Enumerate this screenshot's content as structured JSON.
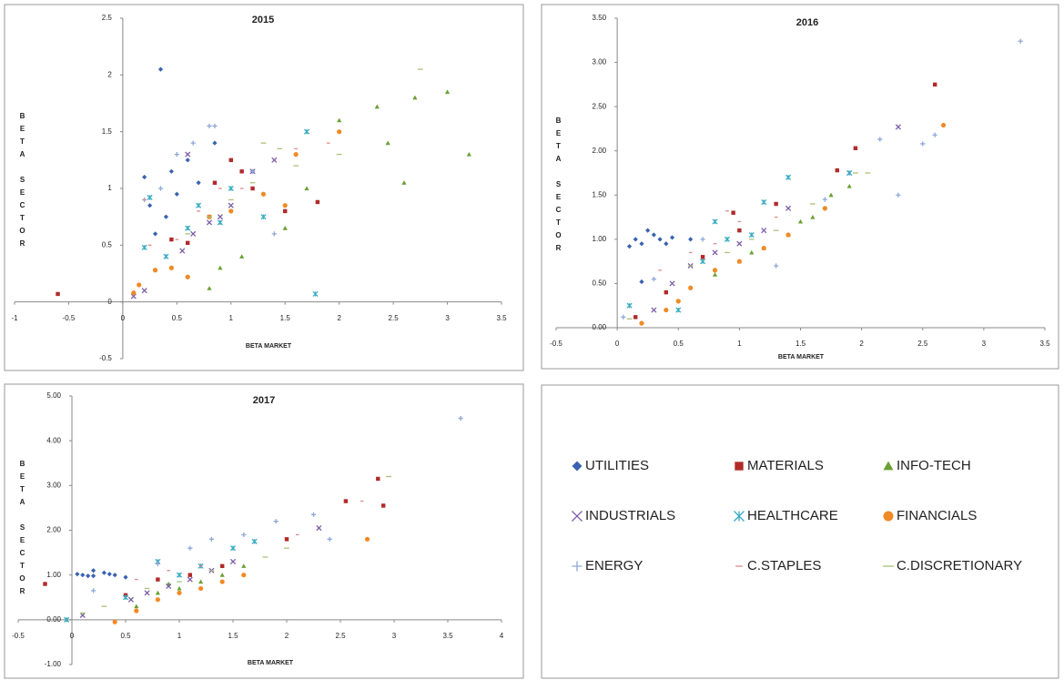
{
  "chart_data": [
    {
      "type": "scatter",
      "title": "2015",
      "x_label": "BETA MARKET",
      "y_label": "BETA SECTOR",
      "xlim": [
        -1,
        3.5
      ],
      "ylim": [
        -0.5,
        2.5
      ],
      "xticks": [
        -1,
        -0.5,
        0,
        0.5,
        1,
        1.5,
        2,
        2.5,
        3,
        3.5
      ],
      "yticks": [
        -0.5,
        0,
        0.5,
        1,
        1.5,
        2,
        2.5
      ],
      "series": [
        {
          "x": [
            0.35,
            0.2,
            0.3,
            0.45,
            0.5,
            0.6,
            0.85,
            0.4,
            0.7,
            0.25
          ],
          "values": [
            2.05,
            1.1,
            0.6,
            1.15,
            0.95,
            1.25,
            1.4,
            0.75,
            1.05,
            0.85
          ]
        },
        {
          "x": [
            -0.6,
            0.45,
            0.6,
            0.85,
            1.0,
            1.1,
            1.2,
            1.5,
            1.8,
            0.8
          ],
          "values": [
            0.07,
            0.55,
            0.52,
            1.05,
            1.25,
            1.15,
            1.0,
            0.8,
            0.88,
            0.75
          ]
        },
        {
          "x": [
            0.8,
            0.9,
            1.1,
            1.5,
            1.7,
            2.0,
            2.35,
            2.45,
            2.7,
            3.0,
            3.2,
            2.6
          ],
          "values": [
            0.12,
            0.3,
            0.4,
            0.65,
            1.0,
            1.6,
            1.72,
            1.4,
            1.8,
            1.85,
            1.3,
            1.05
          ]
        },
        {
          "x": [
            0.1,
            0.2,
            0.55,
            0.65,
            0.8,
            0.9,
            1.0,
            1.2,
            1.4,
            0.6
          ],
          "values": [
            0.05,
            0.1,
            0.45,
            0.6,
            0.7,
            0.75,
            0.85,
            1.15,
            1.25,
            1.3
          ]
        },
        {
          "x": [
            0.2,
            0.4,
            0.6,
            0.7,
            0.9,
            1.0,
            1.3,
            1.7,
            1.78,
            0.25
          ],
          "values": [
            0.48,
            0.4,
            0.65,
            0.85,
            0.7,
            1.0,
            0.75,
            1.5,
            0.07,
            0.92
          ]
        },
        {
          "x": [
            0.1,
            0.15,
            0.3,
            0.45,
            0.6,
            0.8,
            1.0,
            1.3,
            1.6,
            2.0,
            1.5
          ],
          "values": [
            0.08,
            0.15,
            0.28,
            0.3,
            0.22,
            0.75,
            0.8,
            0.95,
            1.3,
            1.5,
            0.85
          ]
        },
        {
          "x": [
            0.8,
            0.85,
            0.65,
            0.5,
            1.2,
            1.4,
            0.35,
            0.2
          ],
          "values": [
            1.55,
            1.55,
            1.4,
            1.3,
            1.15,
            0.6,
            1.0,
            0.9
          ]
        },
        {
          "x": [
            0.25,
            0.5,
            0.7,
            1.1,
            1.6,
            1.9,
            0.9,
            0.2
          ],
          "values": [
            0.5,
            0.55,
            0.8,
            1.0,
            1.35,
            1.4,
            1.0,
            0.9
          ]
        },
        {
          "x": [
            0.6,
            0.8,
            1.0,
            1.2,
            1.3,
            1.6,
            2.0,
            2.75,
            1.45
          ],
          "values": [
            0.6,
            0.75,
            0.9,
            1.05,
            1.4,
            1.2,
            1.3,
            2.05,
            1.35
          ]
        }
      ]
    },
    {
      "type": "scatter",
      "title": "2016",
      "x_label": "BETA MARKET",
      "y_label": "BETA SECTOR",
      "xlim": [
        -0.5,
        3.5
      ],
      "ylim": [
        0,
        3.5
      ],
      "xticks": [
        -0.5,
        0,
        0.5,
        1,
        1.5,
        2,
        2.5,
        3,
        3.5
      ],
      "yticks": [
        {
          "value": 0,
          "label": "0.00"
        },
        {
          "value": 0.5,
          "label": "0.50"
        },
        {
          "value": 1,
          "label": "1.00"
        },
        {
          "value": 1.5,
          "label": "1.50"
        },
        {
          "value": 2,
          "label": "2.00"
        },
        {
          "value": 2.5,
          "label": "2.50"
        },
        {
          "value": 3,
          "label": "3.00"
        },
        {
          "value": 3.5,
          "label": "3.50"
        }
      ],
      "series": [
        {
          "x": [
            0.1,
            0.15,
            0.2,
            0.25,
            0.3,
            0.35,
            0.4,
            0.2,
            0.6,
            0.45
          ],
          "values": [
            0.92,
            1.0,
            0.95,
            1.1,
            1.05,
            1.0,
            0.95,
            0.52,
            1.0,
            1.02
          ]
        },
        {
          "x": [
            0.15,
            0.4,
            0.7,
            1.0,
            1.3,
            1.8,
            1.95,
            2.6,
            0.95
          ],
          "values": [
            0.12,
            0.4,
            0.8,
            1.1,
            1.4,
            1.78,
            2.03,
            2.75,
            1.3
          ]
        },
        {
          "x": [
            0.8,
            1.0,
            1.2,
            1.4,
            1.6,
            1.75,
            1.9,
            1.1,
            1.5
          ],
          "values": [
            0.6,
            0.75,
            0.9,
            1.05,
            1.25,
            1.5,
            1.6,
            0.85,
            1.2
          ]
        },
        {
          "x": [
            0.3,
            0.45,
            0.6,
            0.8,
            1.0,
            1.2,
            1.4,
            2.3,
            1.9
          ],
          "values": [
            0.2,
            0.5,
            0.7,
            0.85,
            0.95,
            1.1,
            1.35,
            2.27,
            1.75
          ]
        },
        {
          "x": [
            0.1,
            0.5,
            0.7,
            0.9,
            1.1,
            1.2,
            1.4,
            1.9,
            0.8
          ],
          "values": [
            0.25,
            0.2,
            0.75,
            1.0,
            1.05,
            1.42,
            1.7,
            1.75,
            1.2
          ]
        },
        {
          "x": [
            0.2,
            0.4,
            0.5,
            0.6,
            0.8,
            1.0,
            1.2,
            1.4,
            1.7,
            2.67
          ],
          "values": [
            0.05,
            0.2,
            0.3,
            0.45,
            0.65,
            0.75,
            0.9,
            1.05,
            1.35,
            2.29
          ]
        },
        {
          "x": [
            0.05,
            0.3,
            0.7,
            1.3,
            1.7,
            2.3,
            2.5,
            2.6,
            3.3,
            2.15
          ],
          "values": [
            0.12,
            0.55,
            1.0,
            0.7,
            1.45,
            1.5,
            2.08,
            2.18,
            3.24,
            2.13
          ]
        },
        {
          "x": [
            0.35,
            0.6,
            0.9,
            1.0,
            1.3,
            0.8
          ],
          "values": [
            0.65,
            0.85,
            1.32,
            1.2,
            1.25,
            0.95
          ]
        },
        {
          "x": [
            0.1,
            0.6,
            0.9,
            1.1,
            1.3,
            1.6,
            1.95,
            2.05
          ],
          "values": [
            0.1,
            0.7,
            0.85,
            1.0,
            1.1,
            1.4,
            1.75,
            1.75
          ]
        }
      ]
    },
    {
      "type": "scatter",
      "title": "2017",
      "x_label": "BETA MARKET",
      "y_label": "BETA SECTOR",
      "xlim": [
        -0.5,
        4
      ],
      "ylim": [
        -1,
        5
      ],
      "xticks": [
        -0.5,
        0,
        0.5,
        1,
        1.5,
        2,
        2.5,
        3,
        3.5,
        4
      ],
      "yticks": [
        {
          "value": -1,
          "label": "-1.00"
        },
        {
          "value": 0,
          "label": "0.00"
        },
        {
          "value": 1,
          "label": "1.00"
        },
        {
          "value": 2,
          "label": "2.00"
        },
        {
          "value": 3,
          "label": "3.00"
        },
        {
          "value": 4,
          "label": "4.00"
        },
        {
          "value": 5,
          "label": "5.00"
        }
      ],
      "series": [
        {
          "x": [
            0.05,
            0.1,
            0.15,
            0.2,
            0.3,
            0.4,
            0.5,
            0.2,
            0.35
          ],
          "values": [
            1.02,
            1.0,
            0.98,
            1.1,
            1.05,
            1.0,
            0.95,
            0.98,
            1.02
          ]
        },
        {
          "x": [
            -0.25,
            0.5,
            0.8,
            1.1,
            1.4,
            2.0,
            2.55,
            2.85,
            2.9
          ],
          "values": [
            0.8,
            0.55,
            0.9,
            1.0,
            1.2,
            1.8,
            2.65,
            3.15,
            2.55
          ]
        },
        {
          "x": [
            0.6,
            0.8,
            1.0,
            1.2,
            1.4,
            1.6,
            0.9
          ],
          "values": [
            0.3,
            0.6,
            0.7,
            0.85,
            1.0,
            1.2,
            0.8
          ]
        },
        {
          "x": [
            0.55,
            0.7,
            0.9,
            1.1,
            1.3,
            1.5,
            2.3,
            0.1
          ],
          "values": [
            0.45,
            0.6,
            0.75,
            0.9,
            1.1,
            1.3,
            2.05,
            0.1
          ]
        },
        {
          "x": [
            -0.05,
            0.5,
            0.8,
            1.0,
            1.2,
            1.5,
            1.7
          ],
          "values": [
            0.0,
            0.5,
            1.3,
            1.0,
            1.2,
            1.6,
            1.75
          ]
        },
        {
          "x": [
            0.4,
            0.6,
            0.8,
            1.0,
            1.2,
            1.4,
            1.6,
            2.75
          ],
          "values": [
            -0.05,
            0.2,
            0.45,
            0.6,
            0.7,
            0.85,
            1.0,
            1.8
          ]
        },
        {
          "x": [
            0.2,
            0.8,
            1.1,
            1.3,
            1.6,
            1.9,
            2.25,
            2.4,
            3.62
          ],
          "values": [
            0.65,
            1.25,
            1.6,
            1.8,
            1.9,
            2.2,
            2.35,
            1.8,
            4.5
          ]
        },
        {
          "x": [
            0.6,
            0.9,
            1.2,
            2.1,
            2.7
          ],
          "values": [
            0.9,
            1.1,
            1.2,
            1.9,
            2.65
          ]
        },
        {
          "x": [
            0.1,
            0.3,
            0.7,
            1.0,
            1.3,
            1.8,
            2.0,
            2.95
          ],
          "values": [
            0.15,
            0.3,
            0.7,
            0.85,
            1.1,
            1.4,
            1.6,
            3.2
          ]
        }
      ]
    }
  ],
  "legend": [
    {
      "name": "UTILITIES",
      "color": "#3a62b0",
      "marker": "diamond"
    },
    {
      "name": "MATERIALS",
      "color": "#b22a2a",
      "marker": "square"
    },
    {
      "name": "INFO-TECH",
      "color": "#6aa033",
      "marker": "triangle"
    },
    {
      "name": "INDUSTRIALS",
      "color": "#7b5ea7",
      "marker": "x"
    },
    {
      "name": "HEALTHCARE",
      "color": "#3aacc4",
      "marker": "asterisk"
    },
    {
      "name": "FINANCIALS",
      "color": "#f08a24",
      "marker": "circle"
    },
    {
      "name": "ENERGY",
      "color": "#8fa7d8",
      "marker": "plus"
    },
    {
      "name": "C.STAPLES",
      "color": "#e08a8a",
      "marker": "dash"
    },
    {
      "name": "C.DISCRETIONARY",
      "color": "#a9c27a",
      "marker": "longdash"
    }
  ]
}
